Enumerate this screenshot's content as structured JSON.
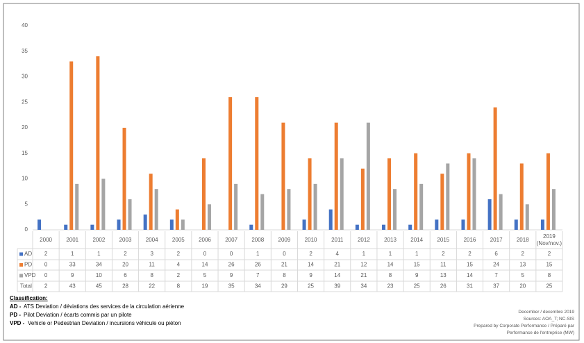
{
  "chart_data": {
    "type": "bar",
    "categories": [
      "2000",
      "2001",
      "2002",
      "2003",
      "2004",
      "2005",
      "2006",
      "2007",
      "2008",
      "2009",
      "2010",
      "2011",
      "2012",
      "2013",
      "2014",
      "2015",
      "2016",
      "2017",
      "2018",
      "2019 (Nov/nov.)"
    ],
    "series": [
      {
        "name": "AD",
        "color": "#4472c4",
        "values": [
          2,
          1,
          1,
          2,
          3,
          2,
          0,
          0,
          1,
          0,
          2,
          4,
          1,
          1,
          1,
          2,
          2,
          6,
          2,
          2
        ]
      },
      {
        "name": "PD",
        "color": "#ed7d31",
        "values": [
          0,
          33,
          34,
          20,
          11,
          4,
          14,
          26,
          26,
          21,
          14,
          21,
          12,
          14,
          15,
          11,
          15,
          24,
          13,
          15
        ]
      },
      {
        "name": "VPD",
        "color": "#a5a5a5",
        "values": [
          0,
          9,
          10,
          6,
          8,
          2,
          5,
          9,
          7,
          8,
          9,
          14,
          21,
          8,
          9,
          13,
          14,
          7,
          5,
          8
        ]
      }
    ],
    "totals": {
      "name": "Total",
      "values": [
        2,
        43,
        45,
        28,
        22,
        8,
        19,
        35,
        34,
        29,
        25,
        39,
        34,
        23,
        25,
        26,
        31,
        37,
        20,
        25
      ]
    },
    "ylim": [
      0,
      40
    ],
    "yticks": [
      0,
      5,
      10,
      15,
      20,
      25,
      30,
      35,
      40
    ],
    "grid": false
  },
  "classification": {
    "title": "Classification:",
    "items": [
      {
        "code": "AD -",
        "text": "ATS Deviation / déviations des services de la circulation aérienne"
      },
      {
        "code": "PD -",
        "text": "Pilot Deviation / écarts commis par un pilote"
      },
      {
        "code": "VPD -",
        "text": "Vehicle or Pedestrian Deviation / incursions véhicule ou piéton"
      }
    ]
  },
  "notes": [
    "December / decembre 2019",
    "Sources: AOA_T; NC-SIS",
    "Prepared by Corporate Performance / Préparé par",
    "Performance de l'entreprise (MW)"
  ]
}
